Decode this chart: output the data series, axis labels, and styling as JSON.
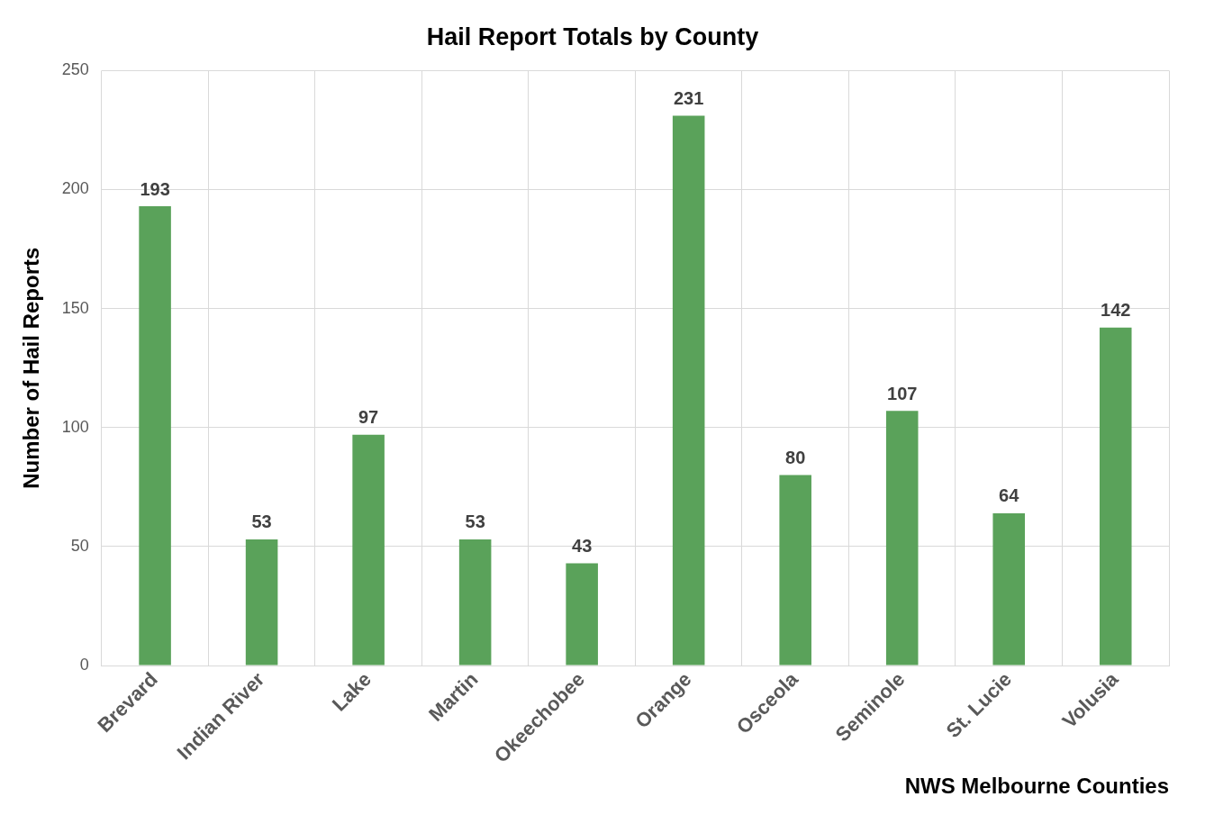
{
  "chart_data": {
    "type": "bar",
    "title": "Hail Report Totals by County",
    "xlabel": "NWS Melbourne Counties",
    "ylabel": "Number of Hail Reports",
    "categories": [
      "Brevard",
      "Indian River",
      "Lake",
      "Martin",
      "Okeechobee",
      "Orange",
      "Osceola",
      "Seminole",
      "St. Lucie",
      "Volusia"
    ],
    "values": [
      193,
      53,
      97,
      53,
      43,
      231,
      80,
      107,
      64,
      142
    ],
    "color": "#5aa25a",
    "ylim": [
      0,
      250
    ],
    "yticks": [
      0,
      50,
      100,
      150,
      200,
      250
    ],
    "grid": true,
    "data_labels": true,
    "legend": false
  }
}
